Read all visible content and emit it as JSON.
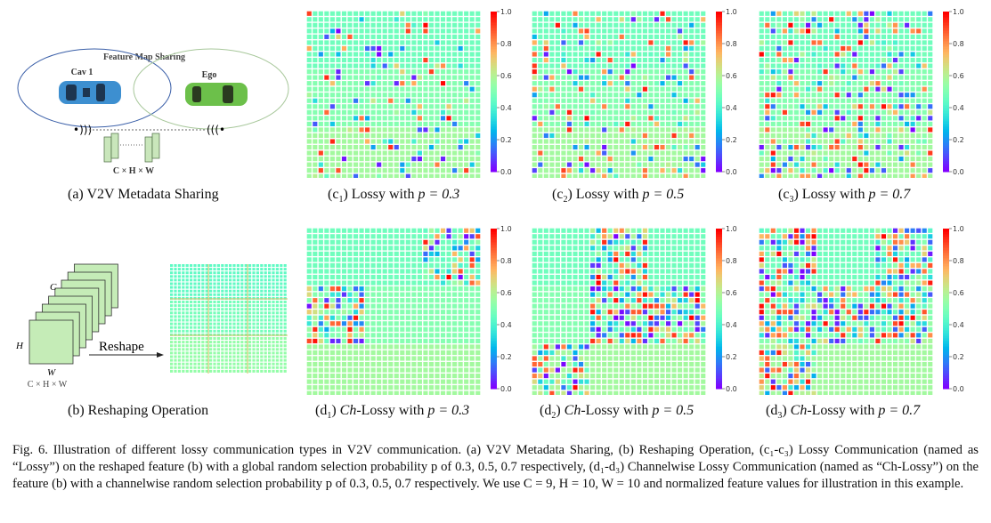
{
  "panel_a": {
    "title": "Feature Map Sharing",
    "cav_label": "Cav 1",
    "ego_label": "Ego",
    "shape_label": "C × H × W",
    "caption": "(a) V2V Metadata Sharing",
    "colors": {
      "cav_ellipse": "#3a5fa8",
      "ego_ellipse": "#a7c79a",
      "cav_car": "#3d8fd0",
      "ego_car": "#6cc04a",
      "feature_block": "#c9e6bb"
    }
  },
  "panel_b": {
    "c_label": "C",
    "h_label": "H",
    "w_label": "W",
    "shape_label": "C × H × W",
    "arrow_label": "Reshape",
    "caption": "(b) Reshaping Operation"
  },
  "captions": {
    "c1": {
      "prefix": "(c",
      "sub": "1",
      "suffix": ") Lossy with ",
      "eq": "p = 0.3"
    },
    "c2": {
      "prefix": "(c",
      "sub": "2",
      "suffix": ") Lossy with ",
      "eq": "p = 0.5"
    },
    "c3": {
      "prefix": "(c",
      "sub": "3",
      "suffix": ") Lossy with ",
      "eq": "p = 0.7"
    },
    "d1": {
      "prefix": "(d",
      "sub": "1",
      "ch": "Ch",
      "suffix": "-Lossy with ",
      "eq": "p = 0.3"
    },
    "d2": {
      "prefix": "(d",
      "sub": "2",
      "ch": "Ch",
      "suffix": "-Lossy with ",
      "eq": "p = 0.5"
    },
    "d3": {
      "prefix": "(d",
      "sub": "3",
      "ch": "Ch",
      "suffix": "-Lossy with ",
      "eq": "p = 0.7"
    }
  },
  "figure_caption": "Fig. 6.  Illustration of different lossy communication types in V2V communication. (a) V2V Metadata Sharing, (b) Reshaping Operation, (c₁-c₃) Lossy Communication (named as “Lossy”) on the reshaped feature (b) with a global random selection probability p of 0.3, 0.5, 0.7 respectively, (d₁-d₃) Channelwise Lossy Communication (named as “Ch-Lossy”) on the feature (b) with a channelwise random selection probability p of 0.3, 0.5, 0.7 respectively. We use C = 9, H = 10, W = 10 and normalized feature values for illustration in this example.",
  "chart_data": [
    {
      "id": "c1",
      "type": "heatmap",
      "mode": "global",
      "p": 0.3,
      "grid": [
        30,
        30
      ],
      "channels": 9,
      "colormap": "rainbow",
      "vmin": 0,
      "vmax": 1,
      "colorbar_ticks": [
        "0.0",
        "0.2",
        "0.4",
        "0.6",
        "0.8",
        "1.0"
      ]
    },
    {
      "id": "c2",
      "type": "heatmap",
      "mode": "global",
      "p": 0.5,
      "grid": [
        30,
        30
      ],
      "channels": 9,
      "colormap": "rainbow",
      "vmin": 0,
      "vmax": 1,
      "colorbar_ticks": [
        "0.0",
        "0.2",
        "0.4",
        "0.6",
        "0.8",
        "1.0"
      ]
    },
    {
      "id": "c3",
      "type": "heatmap",
      "mode": "global",
      "p": 0.7,
      "grid": [
        30,
        30
      ],
      "channels": 9,
      "colormap": "rainbow",
      "vmin": 0,
      "vmax": 1,
      "colorbar_ticks": [
        "0.0",
        "0.2",
        "0.4",
        "0.6",
        "0.8",
        "1.0"
      ]
    },
    {
      "id": "d1",
      "type": "heatmap",
      "mode": "channelwise",
      "p": 0.3,
      "grid": [
        30,
        30
      ],
      "channels": 9,
      "lossy_channels": [
        [
          0,
          2
        ],
        [
          1,
          0
        ]
      ],
      "colormap": "rainbow",
      "vmin": 0,
      "vmax": 1,
      "colorbar_ticks": [
        "0.0",
        "0.2",
        "0.4",
        "0.6",
        "0.8",
        "1.0"
      ]
    },
    {
      "id": "d2",
      "type": "heatmap",
      "mode": "channelwise",
      "p": 0.5,
      "grid": [
        30,
        30
      ],
      "channels": 9,
      "lossy_channels": [
        [
          0,
          1
        ],
        [
          1,
          1
        ],
        [
          1,
          2
        ],
        [
          2,
          0
        ]
      ],
      "colormap": "rainbow",
      "vmin": 0,
      "vmax": 1,
      "colorbar_ticks": [
        "0.0",
        "0.2",
        "0.4",
        "0.6",
        "0.8",
        "1.0"
      ]
    },
    {
      "id": "d3",
      "type": "heatmap",
      "mode": "channelwise",
      "p": 0.7,
      "grid": [
        30,
        30
      ],
      "channels": 9,
      "lossy_channels": [
        [
          0,
          0
        ],
        [
          0,
          2
        ],
        [
          1,
          0
        ],
        [
          1,
          1
        ],
        [
          1,
          2
        ],
        [
          2,
          0
        ]
      ],
      "colormap": "rainbow",
      "vmin": 0,
      "vmax": 1,
      "colorbar_ticks": [
        "0.0",
        "0.2",
        "0.4",
        "0.6",
        "0.8",
        "1.0"
      ]
    }
  ]
}
